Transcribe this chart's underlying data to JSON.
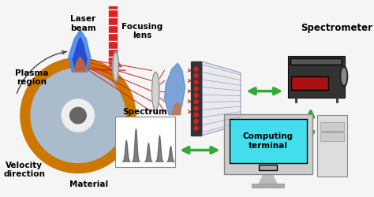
{
  "bg_color": "#f5f5f5",
  "labels": {
    "laser_beam": "Laser\nbeam",
    "focusing_lens": "Focusing\nlens",
    "plasma_region": "Plasma\nregion",
    "velocity_direction": "Velocity\ndirection",
    "material": "Material",
    "spectrum": "Spectrum",
    "computing_terminal": "Computing\nterminal",
    "spectrometer": "Spectrometer"
  },
  "colors": {
    "laser_red": "#dd2222",
    "laser_white": "#ffffff",
    "lens_gray": "#d0d0d0",
    "lens_edge": "#888888",
    "disk_orange": "#cc7700",
    "disk_blue": "#aabbcc",
    "disk_white": "#eeeeee",
    "disk_dark": "#666666",
    "plasma_blue": "#2244cc",
    "plasma_flame": "#4488ee",
    "plasma_orange": "#dd6622",
    "arrow_green": "#33aa33",
    "arrow_red": "#cc2222",
    "fiber_dark": "#333333",
    "fiber_blue": "#5588cc",
    "wedge_fill": "#e8eaee",
    "wedge_line": "#9999bb",
    "spectrometer_body": "#333333",
    "spectrometer_red": "#aa1111",
    "spectrometer_lens": "#555555",
    "monitor_outer": "#cccccc",
    "monitor_screen": "#44ddee",
    "monitor_base": "#bbbbbb",
    "tower_body": "#dddddd",
    "tower_slot": "#bbbbbb",
    "spectrum_peak": "#555555",
    "text_color": "#000000",
    "arc_color": "#444444"
  }
}
